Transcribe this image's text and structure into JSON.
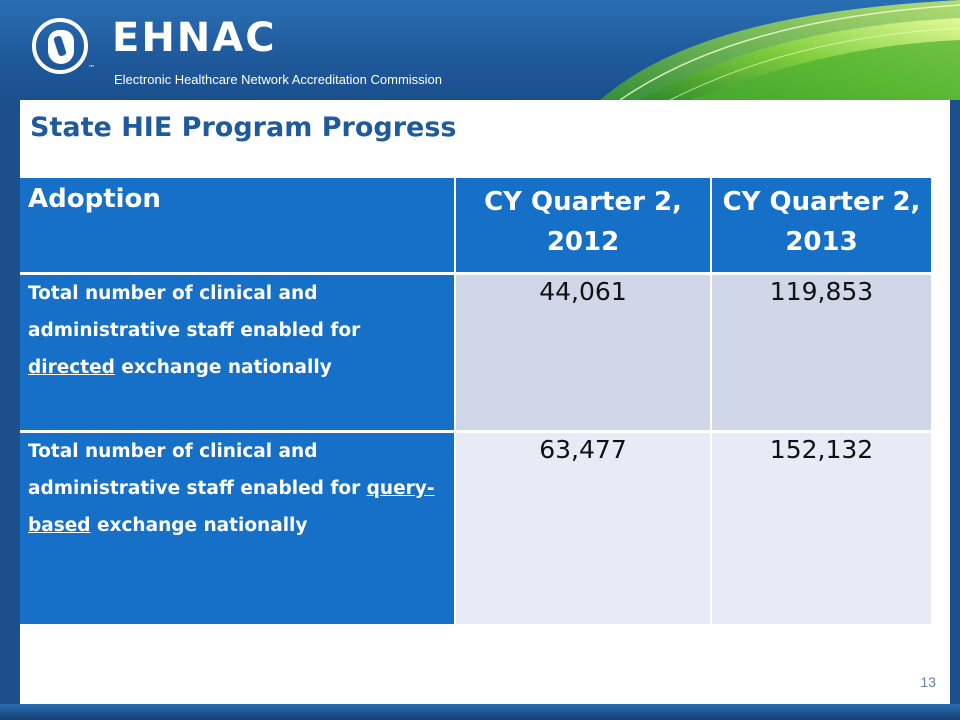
{
  "header": {
    "brand": "EHNAC",
    "tm": "™",
    "subtitle": "Electronic Healthcare Network Accreditation Commission"
  },
  "slide": {
    "title": "State HIE Program Progress",
    "page_number": "13"
  },
  "table": {
    "headers": [
      "Adoption",
      "CY Quarter 2, 2012",
      "CY Quarter 2, 2013"
    ],
    "rows": [
      {
        "label_prefix": "Total number of clinical and administrative staff enabled for",
        "label_emphasis": "directed",
        "label_suffix": "exchange nationally",
        "values": [
          "44,061",
          "119,853"
        ]
      },
      {
        "label_prefix": "Total number of clinical and administrative staff enabled for",
        "label_emphasis": "query-based",
        "label_suffix": "exchange nationally",
        "values": [
          "63,477",
          "152,132"
        ]
      }
    ]
  },
  "colors": {
    "header_blue": "#1f5a9c",
    "table_blue": "#1770c7",
    "row1_cell": "#cfd7e8",
    "row2_cell": "#e8ebf5",
    "swoosh_green": "#6cc04a"
  },
  "icons": {
    "logo": "ehnac-logo-icon",
    "swoosh": "green-swoosh-decoration"
  }
}
